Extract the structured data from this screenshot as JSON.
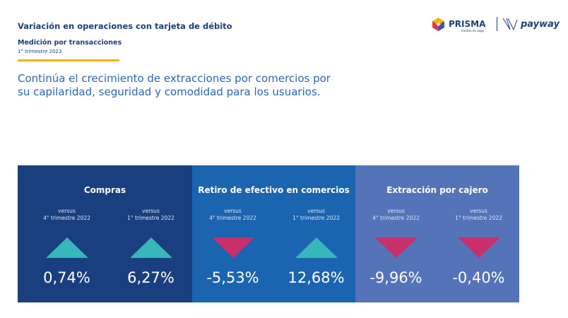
{
  "header": {
    "title": "Variación en operaciones con tarjeta de débito",
    "subtitle": "Medición por transacciones",
    "period": "1° trimestre 2023"
  },
  "lead": "Continúa el crecimiento de extracciones por comercios por su capilaridad, seguridad y comodidad para los usuarios.",
  "logos": {
    "prisma": "PRISMA",
    "prisma_tag": "medios de pago",
    "payway": "payway"
  },
  "colors": {
    "panel1": "#1a3f7e",
    "panel2": "#1b64b0",
    "panel3": "#5573b8",
    "up": "#36b7b9",
    "down": "#c8306b",
    "accent": "#f4b400"
  },
  "panels": [
    {
      "title": "Compras",
      "items": [
        {
          "versus": "versus",
          "period": "4° trimestre 2022",
          "direction": "up",
          "value": "0,74%"
        },
        {
          "versus": "versus",
          "period": "1° trimestre 2022",
          "direction": "up",
          "value": "6,27%"
        }
      ]
    },
    {
      "title": "Retiro de efectivo en comercios",
      "items": [
        {
          "versus": "versus",
          "period": "4° trimestre 2022",
          "direction": "down",
          "value": "-5,53%"
        },
        {
          "versus": "versus",
          "period": "1° trimestre 2022",
          "direction": "up",
          "value": "12,68%"
        }
      ]
    },
    {
      "title": "Extracción por cajero",
      "items": [
        {
          "versus": "versus",
          "period": "4° trimestre 2022",
          "direction": "down",
          "value": "-9,96%"
        },
        {
          "versus": "versus",
          "period": "1° trimestre 2022",
          "direction": "down",
          "value": "-0,40%"
        }
      ]
    }
  ]
}
